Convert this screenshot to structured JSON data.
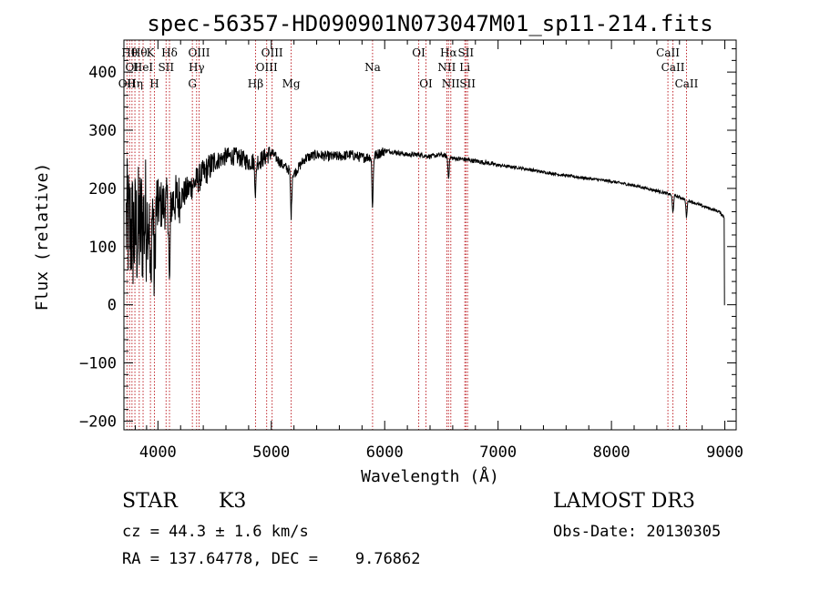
{
  "chart_data": {
    "type": "line",
    "title": "spec-56357-HD090901N073047M01_sp11-214.fits",
    "xlabel": "Wavelength (Å)",
    "ylabel": "Flux (relative)",
    "xlim": [
      3700,
      9100
    ],
    "ylim": [
      -215,
      455
    ],
    "x_ticks": [
      4000,
      5000,
      6000,
      7000,
      8000,
      9000
    ],
    "y_ticks": [
      -200,
      -100,
      0,
      100,
      200,
      300,
      400
    ],
    "x_tick_labels": [
      "4000",
      "5000",
      "6000",
      "7000",
      "8000",
      "9000"
    ],
    "y_tick_labels": [
      "−200",
      "−100",
      "0",
      "100",
      "200",
      "300",
      "400"
    ],
    "continuum": [
      [
        3720,
        140
      ],
      [
        3800,
        120
      ],
      [
        3900,
        150
      ],
      [
        4000,
        170
      ],
      [
        4100,
        175
      ],
      [
        4200,
        185
      ],
      [
        4300,
        205
      ],
      [
        4400,
        225
      ],
      [
        4500,
        245
      ],
      [
        4600,
        255
      ],
      [
        4700,
        255
      ],
      [
        4800,
        245
      ],
      [
        4900,
        248
      ],
      [
        5000,
        262
      ],
      [
        5100,
        240
      ],
      [
        5200,
        225
      ],
      [
        5300,
        252
      ],
      [
        5400,
        258
      ],
      [
        5500,
        255
      ],
      [
        5600,
        255
      ],
      [
        5700,
        258
      ],
      [
        5800,
        253
      ],
      [
        5900,
        255
      ],
      [
        6000,
        265
      ],
      [
        6100,
        262
      ],
      [
        6200,
        258
      ],
      [
        6300,
        258
      ],
      [
        6400,
        255
      ],
      [
        6500,
        258
      ],
      [
        6600,
        252
      ],
      [
        6700,
        250
      ],
      [
        6800,
        247
      ],
      [
        6900,
        244
      ],
      [
        7000,
        240
      ],
      [
        7200,
        235
      ],
      [
        7400,
        228
      ],
      [
        7600,
        222
      ],
      [
        7800,
        217
      ],
      [
        8000,
        212
      ],
      [
        8200,
        205
      ],
      [
        8400,
        196
      ],
      [
        8600,
        185
      ],
      [
        8800,
        170
      ],
      [
        8950,
        160
      ],
      [
        9000,
        150
      ]
    ],
    "absorption_features": [
      {
        "w": 3934,
        "depth": 140
      },
      {
        "w": 3969,
        "depth": 120
      },
      {
        "w": 4102,
        "depth": 150
      },
      {
        "w": 4861,
        "depth": 55
      },
      {
        "w": 5175,
        "depth": 75
      },
      {
        "w": 5893,
        "depth": 85
      },
      {
        "w": 6563,
        "depth": 35
      },
      {
        "w": 8542,
        "depth": 30
      },
      {
        "w": 8662,
        "depth": 30
      }
    ],
    "line_markers": [
      {
        "w": 3727,
        "label": "OII",
        "row": 3
      },
      {
        "w": 3750,
        "label": "Hθ",
        "row": 1
      },
      {
        "w": 3771,
        "label": "OI",
        "row": 2
      },
      {
        "w": 3797,
        "label": "Hη",
        "row": 3
      },
      {
        "w": 3835,
        "label": "Hθ",
        "row": 1
      },
      {
        "w": 3869,
        "label": "HeI",
        "row": 2
      },
      {
        "w": 3934,
        "label": "K",
        "row": 1
      },
      {
        "w": 3969,
        "label": "H",
        "row": 3
      },
      {
        "w": 4072,
        "label": "SII",
        "row": 2
      },
      {
        "w": 4102,
        "label": "Hδ",
        "row": 1
      },
      {
        "w": 4304,
        "label": "G",
        "row": 3
      },
      {
        "w": 4341,
        "label": "Hγ",
        "row": 2
      },
      {
        "w": 4363,
        "label": "OIII",
        "row": 1
      },
      {
        "w": 4861,
        "label": "Hβ",
        "row": 3
      },
      {
        "w": 4959,
        "label": "OIII",
        "row": 2
      },
      {
        "w": 5007,
        "label": "OIII",
        "row": 1
      },
      {
        "w": 5175,
        "label": "Mg",
        "row": 3
      },
      {
        "w": 5893,
        "label": "Na",
        "row": 2
      },
      {
        "w": 6300,
        "label": "OI",
        "row": 1
      },
      {
        "w": 6364,
        "label": "OI",
        "row": 3
      },
      {
        "w": 6548,
        "label": "NII",
        "row": 2
      },
      {
        "w": 6563,
        "label": "Hα",
        "row": 1
      },
      {
        "w": 6583,
        "label": "NII",
        "row": 3
      },
      {
        "w": 6707,
        "label": "Li",
        "row": 2
      },
      {
        "w": 6716,
        "label": "SII",
        "row": 1
      },
      {
        "w": 6731,
        "label": "SII",
        "row": 3
      },
      {
        "w": 8498,
        "label": "CaII",
        "row": 1
      },
      {
        "w": 8542,
        "label": "CaII",
        "row": 2
      },
      {
        "w": 8662,
        "label": "CaII",
        "row": 3
      }
    ]
  },
  "info": {
    "class_label": "STAR",
    "subclass": "K3",
    "survey": "LAMOST DR3",
    "redshift": "cz = 44.3 ± 1.6 km/s",
    "obs_date": "Obs-Date: 20130305",
    "coords": "RA = 137.64778, DEC =    9.76862"
  },
  "colors": {
    "axis": "#000000",
    "spectrum": "#000000",
    "marker": "#c0282e"
  }
}
